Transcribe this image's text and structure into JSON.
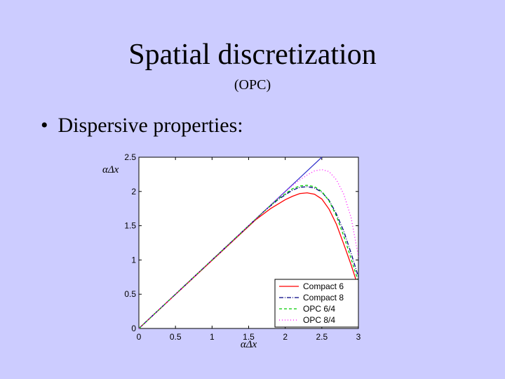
{
  "slide": {
    "title": "Spatial discretization",
    "subtitle": "(OPC)",
    "bullet_symbol": "•",
    "bullet_text": "Dispersive properties:"
  },
  "chart_data": {
    "type": "line",
    "xlabel": "αΔx",
    "ylabel": "αΔx",
    "xlim": [
      0,
      3
    ],
    "ylim": [
      0,
      2.5
    ],
    "xticks": [
      0,
      0.5,
      1,
      1.5,
      2,
      2.5,
      3
    ],
    "xtick_labels": [
      "0",
      "0.5",
      "1",
      "1.5",
      "2",
      "2.5",
      "3"
    ],
    "yticks": [
      0,
      0.5,
      1,
      1.5,
      2,
      2.5
    ],
    "ytick_labels": [
      "0",
      "0.5",
      "1",
      "1.5",
      "2",
      "2.5"
    ],
    "grid": false,
    "legend_position": "bottom-right",
    "reference_line": {
      "color": "#3333cc",
      "x": [
        0,
        2.5
      ],
      "y": [
        0,
        2.5
      ]
    },
    "series": [
      {
        "name": "Compact 6",
        "color": "#ff0000",
        "dash": "solid",
        "x": [
          0,
          1.6,
          1.8,
          2.0,
          2.1,
          2.2,
          2.3,
          2.4,
          2.5,
          2.6,
          2.7,
          2.8,
          2.9,
          3.0
        ],
        "y": [
          0,
          1.59,
          1.75,
          1.88,
          1.93,
          1.97,
          1.98,
          1.96,
          1.89,
          1.74,
          1.52,
          1.23,
          0.93,
          0.6
        ]
      },
      {
        "name": "Compact 8",
        "color": "#000080",
        "dash": "6,2,1,2",
        "x": [
          0,
          1.7,
          1.9,
          2.1,
          2.2,
          2.3,
          2.4,
          2.5,
          2.6,
          2.7,
          2.8,
          2.9,
          3.0
        ],
        "y": [
          0,
          1.7,
          1.88,
          2.02,
          2.06,
          2.07,
          2.05,
          1.99,
          1.87,
          1.67,
          1.42,
          1.1,
          0.75
        ]
      },
      {
        "name": "OPC 6/4",
        "color": "#00cc00",
        "dash": "4,3",
        "x": [
          0,
          1.7,
          1.9,
          2.1,
          2.2,
          2.3,
          2.4,
          2.5,
          2.6,
          2.7,
          2.8,
          2.9,
          3.0
        ],
        "y": [
          0,
          1.7,
          1.89,
          2.04,
          2.08,
          2.09,
          2.07,
          2.0,
          1.86,
          1.64,
          1.35,
          1.02,
          0.68
        ]
      },
      {
        "name": "OPC 8/4",
        "color": "#ff00ff",
        "dash": "1,3",
        "x": [
          0,
          1.9,
          2.1,
          2.2,
          2.3,
          2.4,
          2.5,
          2.6,
          2.7,
          2.8,
          2.9,
          3.0
        ],
        "y": [
          0,
          1.9,
          2.09,
          2.17,
          2.24,
          2.3,
          2.32,
          2.29,
          2.17,
          1.96,
          1.62,
          1.05
        ]
      }
    ]
  }
}
